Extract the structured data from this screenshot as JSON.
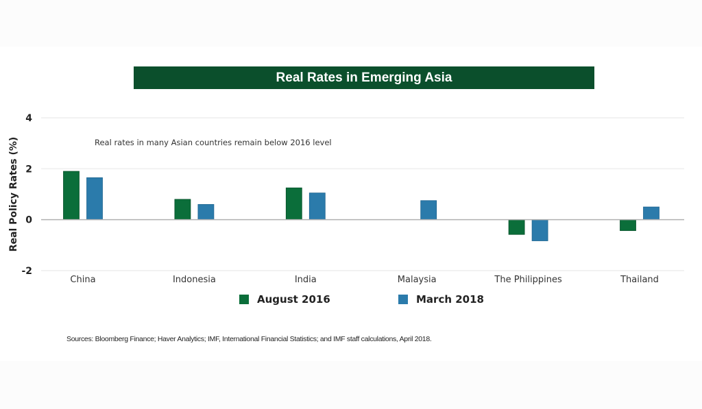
{
  "chart_data": {
    "type": "bar",
    "title": "Real Rates in Emerging Asia",
    "annotation": "Real rates in many Asian countries remain below 2016 level",
    "xlabel": "",
    "ylabel": "Real Policy Rates (%)",
    "ylim": [
      -2,
      4
    ],
    "yticks": [
      4,
      2,
      0,
      -2
    ],
    "grid": true,
    "legend_position": "bottom",
    "categories": [
      "China",
      "Indonesia",
      "India",
      "Malaysia",
      "The Philippines",
      "Thailand"
    ],
    "series": [
      {
        "name": "August 2016",
        "color": "#0b6e3a",
        "values": [
          1.9,
          0.8,
          1.25,
          null,
          -0.58,
          -0.43
        ]
      },
      {
        "name": "March 2018",
        "color": "#2b7bab",
        "values": [
          1.65,
          0.6,
          1.05,
          0.75,
          -0.83,
          0.5
        ]
      }
    ],
    "source": "Sources: Bloomberg Finance; Haver Analytics; IMF, International Financial Statistics; and IMF staff calculations, April 2018."
  },
  "colors": {
    "title_bar": "#0b4f2c",
    "grid": "#eeeeee",
    "zero_line": "#b0b0b0"
  }
}
